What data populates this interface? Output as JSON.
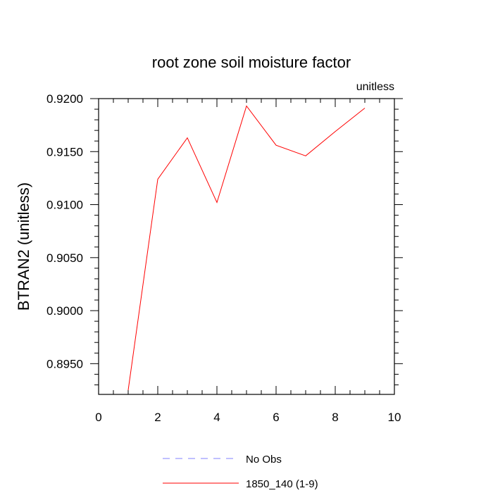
{
  "chart_data": {
    "type": "line",
    "title": "root zone soil moisture factor",
    "units_label": "unitless",
    "xlabel": "",
    "ylabel": "BTRAN2  (unitless)",
    "xlim": [
      0,
      10
    ],
    "ylim": [
      0.8921,
      0.92
    ],
    "x_ticks": [
      0,
      2,
      4,
      6,
      8,
      10
    ],
    "x_tick_labels": [
      "0",
      "2",
      "4",
      "6",
      "8",
      "10"
    ],
    "y_ticks": [
      0.895,
      0.9,
      0.905,
      0.91,
      0.915,
      0.92
    ],
    "y_tick_labels": [
      "0.8950",
      "0.9000",
      "0.9050",
      "0.9100",
      "0.9150",
      "0.9200"
    ],
    "grid": false,
    "legend_position": "bottom-center",
    "series": [
      {
        "name": "1850_140 (1-9)",
        "color": "#ff0000",
        "style": "solid",
        "x": [
          1,
          2,
          3,
          4,
          5,
          6,
          7,
          8,
          9
        ],
        "y": [
          0.8925,
          0.9124,
          0.9163,
          0.9102,
          0.9193,
          0.9156,
          0.9146,
          0.9169,
          0.9191
        ]
      }
    ],
    "legend": [
      {
        "label": "No Obs",
        "color": "#8080ff",
        "style": "dashed"
      },
      {
        "label": "1850_140 (1-9)",
        "color": "#ff0000",
        "style": "solid"
      }
    ]
  }
}
